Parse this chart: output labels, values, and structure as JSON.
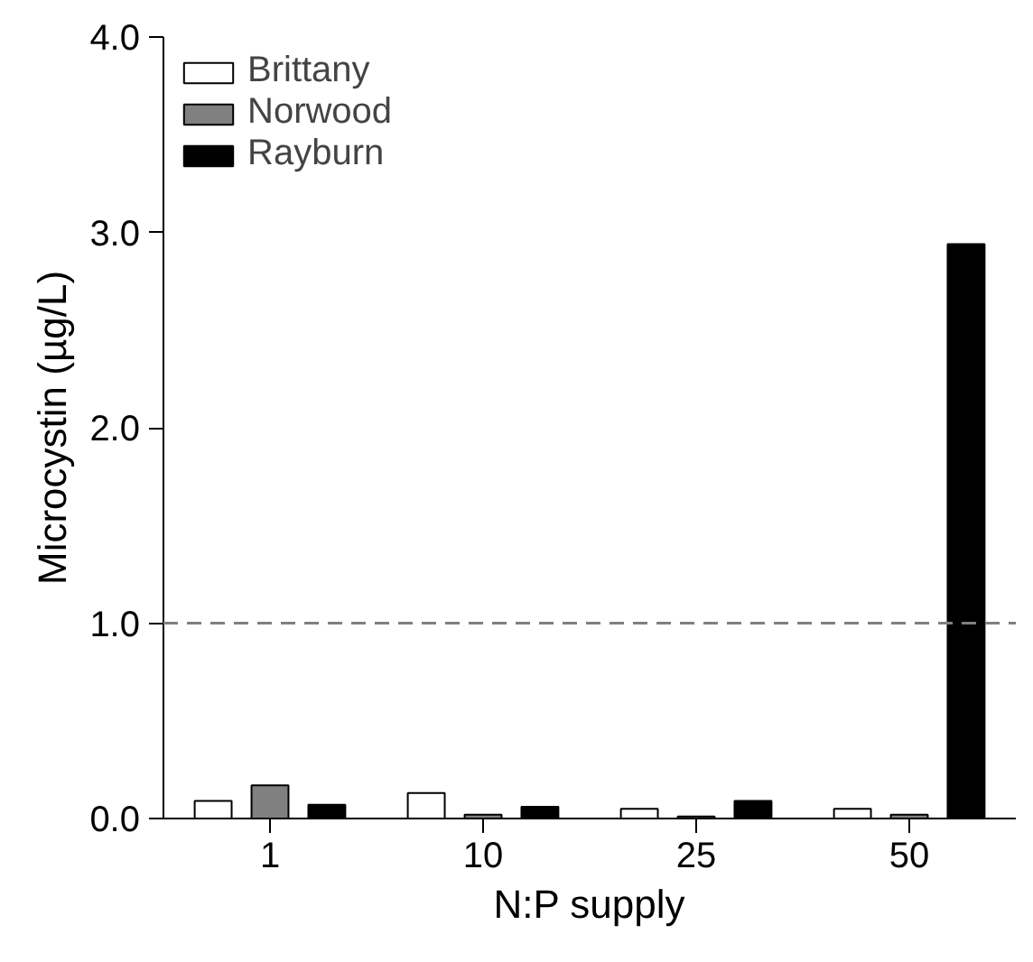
{
  "chart_data": {
    "type": "bar",
    "xlabel": "N:P supply",
    "ylabel": "Microcystin (µg/L)",
    "categories": [
      "1",
      "10",
      "25",
      "50"
    ],
    "series": [
      {
        "name": "Brittany",
        "color": "#ffffff",
        "values": [
          0.09,
          0.13,
          0.05,
          0.05
        ]
      },
      {
        "name": "Norwood",
        "color": "#808080",
        "values": [
          0.17,
          0.02,
          0.01,
          0.02
        ]
      },
      {
        "name": "Rayburn",
        "color": "#000000",
        "values": [
          0.07,
          0.06,
          0.09,
          2.94
        ]
      }
    ],
    "ylim": [
      0,
      4
    ],
    "yticks": [
      {
        "value": 0,
        "label": "0.0"
      },
      {
        "value": 1,
        "label": "1.0"
      },
      {
        "value": 2,
        "label": "2.0"
      },
      {
        "value": 3,
        "label": "3.0"
      },
      {
        "value": 4,
        "label": "4.0"
      }
    ],
    "ref_lines": [
      {
        "axis": "y",
        "value": 1,
        "color": "#808080",
        "line_style": "dashed"
      }
    ],
    "grid": false,
    "legend": "top left"
  }
}
